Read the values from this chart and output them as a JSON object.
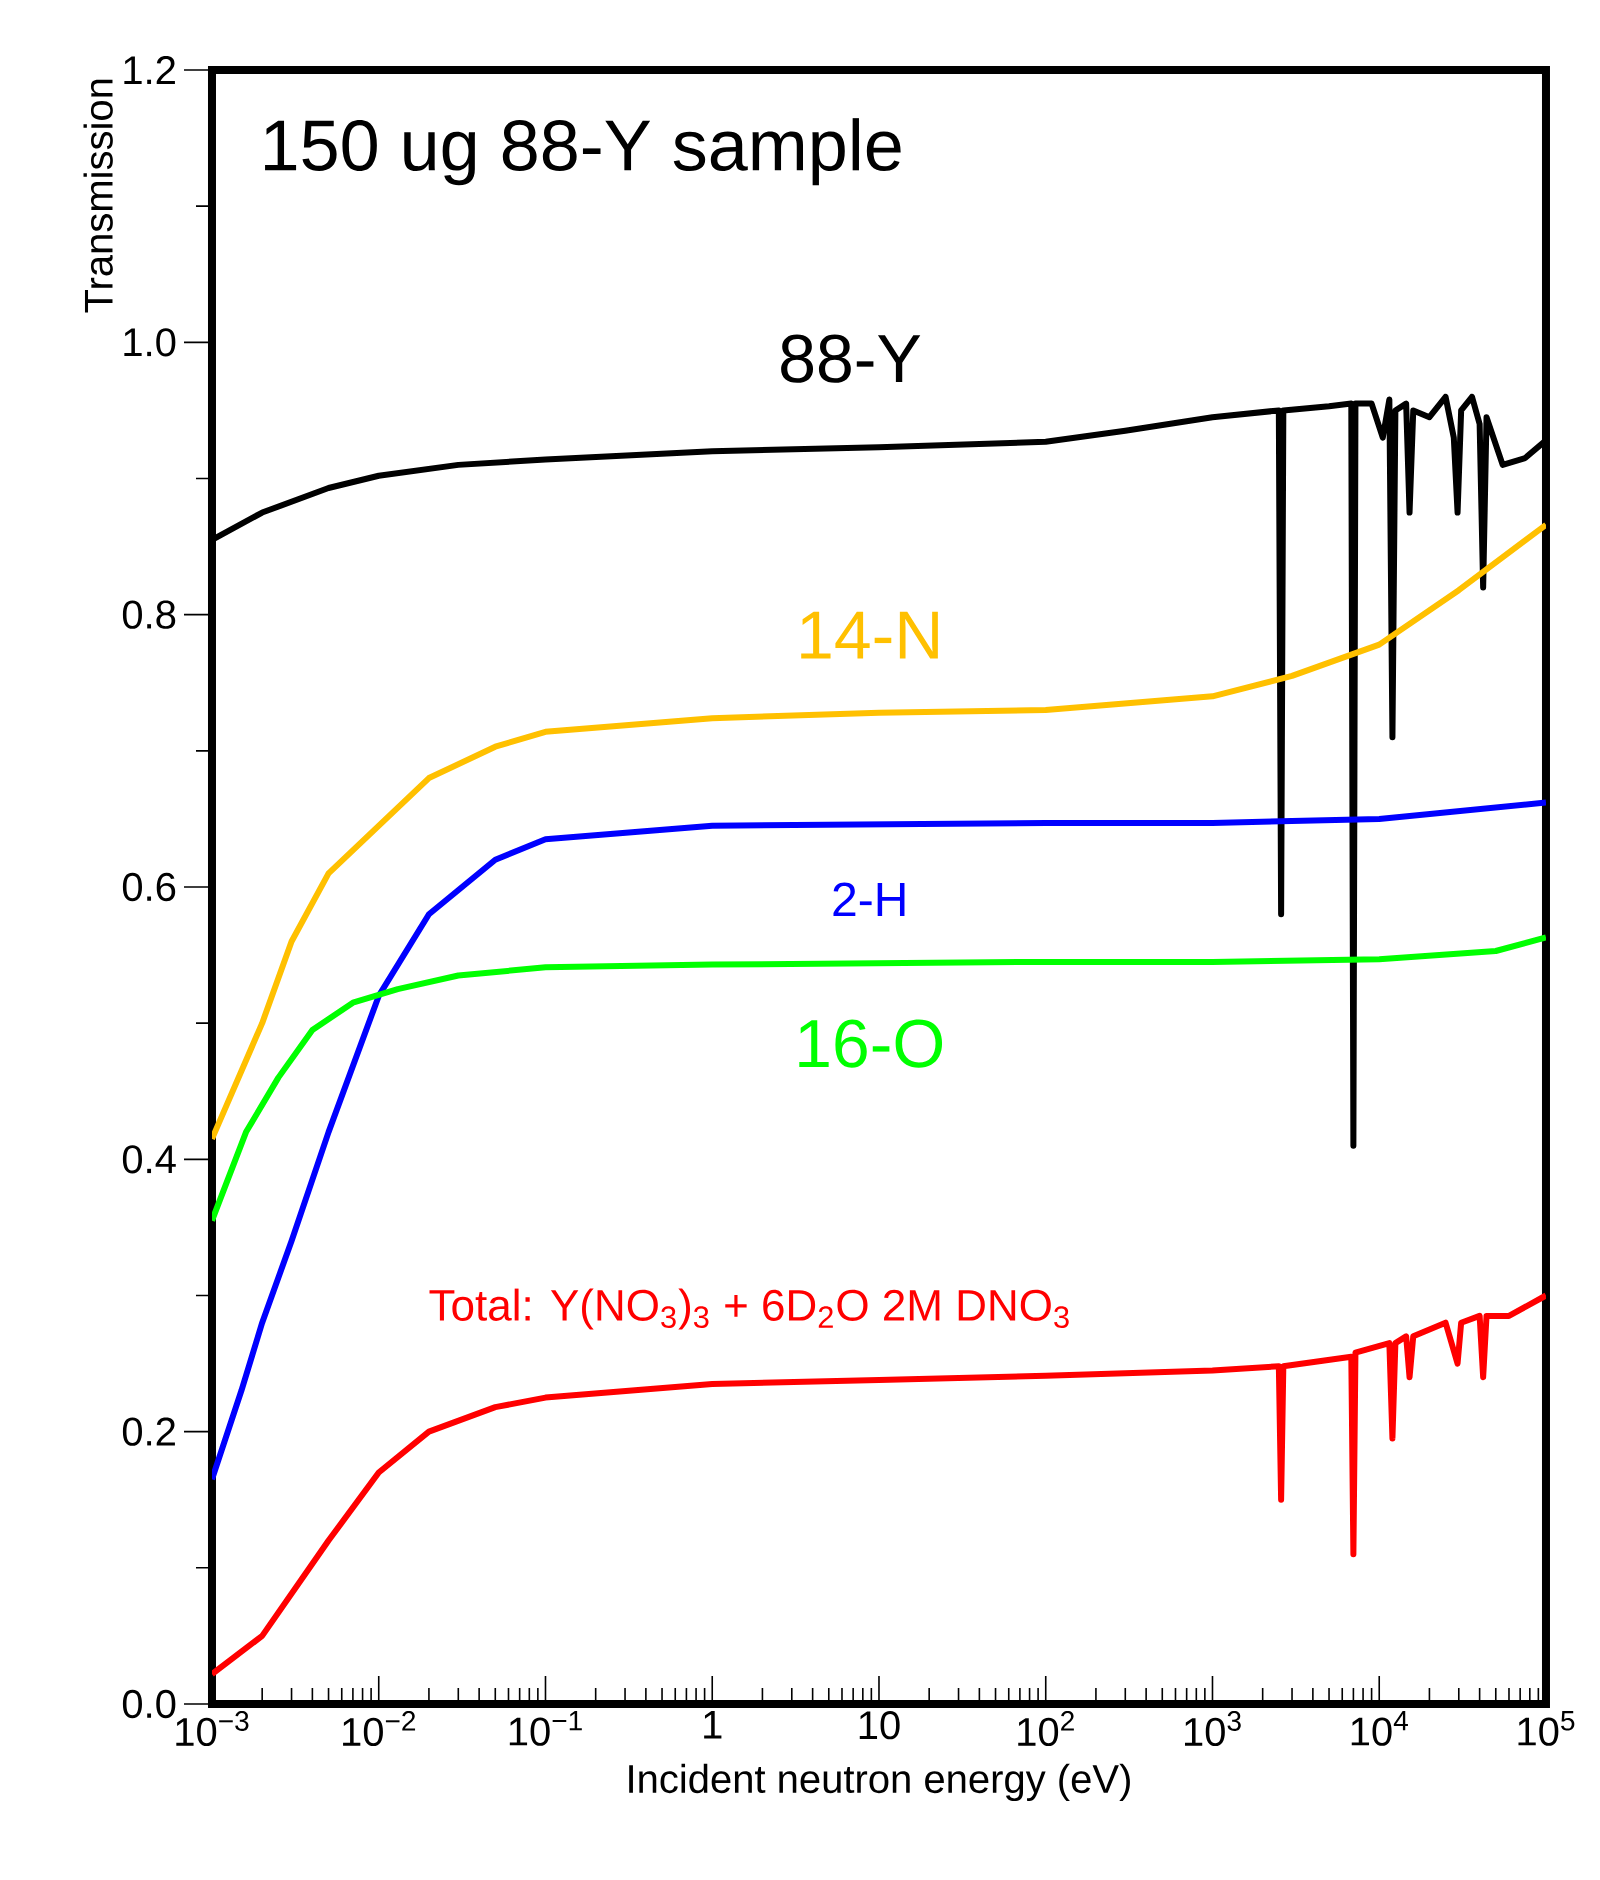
{
  "chart_data": {
    "type": "line",
    "title": "150 ug 88-Y sample",
    "xlabel": "Incident neutron energy (eV)",
    "ylabel": "Transmission",
    "log": "x",
    "xlim": [
      0.001,
      100000
    ],
    "ylim": [
      0,
      1.2
    ],
    "xticks": [
      {
        "value": 0.001,
        "label": "10$^{−3}$"
      },
      {
        "value": 0.01,
        "label": "10$^{−2}$"
      },
      {
        "value": 0.1,
        "label": "10$^{−1}$"
      },
      1,
      10,
      {
        "value": 100,
        "label": "10$^{2}$"
      },
      {
        "value": 1000,
        "label": "10$^{3}$"
      },
      {
        "value": 10000,
        "label": "10$^{4}$"
      },
      {
        "value": 100000,
        "label": "10$^{5}$"
      }
    ],
    "yticks": [
      {
        "value": 0,
        "label": "0.0"
      },
      0.2,
      0.4,
      0.6,
      0.8,
      {
        "value": 1,
        "label": "1.0"
      },
      1.2
    ],
    "marker": "none",
    "line_style": "solid",
    "series": [
      {
        "name": "88-Y",
        "color": "#000000",
        "x": [
          0.001,
          0.002,
          0.005,
          0.01,
          0.03,
          0.1,
          1,
          10,
          100,
          300,
          1000,
          2500,
          2580,
          2660,
          5000,
          6800,
          7000,
          7200,
          9000,
          10500,
          11500,
          12000,
          12500,
          14500,
          15200,
          16000,
          20000,
          25000,
          28000,
          29500,
          31000,
          36000,
          40000,
          42000,
          44000,
          55000,
          75000,
          100000
        ],
        "values": [
          0.855,
          0.875,
          0.893,
          0.902,
          0.91,
          0.914,
          0.92,
          0.923,
          0.927,
          0.935,
          0.945,
          0.95,
          0.58,
          0.95,
          0.953,
          0.955,
          0.41,
          0.955,
          0.955,
          0.93,
          0.958,
          0.71,
          0.95,
          0.955,
          0.875,
          0.95,
          0.945,
          0.96,
          0.93,
          0.875,
          0.95,
          0.96,
          0.94,
          0.82,
          0.945,
          0.91,
          0.915,
          0.928
        ]
      },
      {
        "name": "14-N",
        "color": "#ffc000",
        "x": [
          0.001,
          0.002,
          0.003,
          0.005,
          0.01,
          0.02,
          0.05,
          0.1,
          1,
          10,
          100,
          1000,
          3000,
          10000,
          30000,
          100000
        ],
        "values": [
          0.415,
          0.5,
          0.56,
          0.61,
          0.645,
          0.68,
          0.703,
          0.714,
          0.724,
          0.728,
          0.73,
          0.74,
          0.755,
          0.778,
          0.818,
          0.866
        ]
      },
      {
        "name": "2-H",
        "color": "#0000ff",
        "x": [
          0.001,
          0.0015,
          0.002,
          0.003,
          0.005,
          0.01,
          0.02,
          0.05,
          0.1,
          1,
          100,
          1000,
          10000,
          100000
        ],
        "values": [
          0.165,
          0.23,
          0.28,
          0.34,
          0.42,
          0.52,
          0.58,
          0.62,
          0.635,
          0.645,
          0.647,
          0.647,
          0.65,
          0.662
        ]
      },
      {
        "name": "16-O",
        "color": "#00ff00",
        "x": [
          0.001,
          0.0016,
          0.0025,
          0.004,
          0.007,
          0.013,
          0.03,
          0.1,
          1,
          100,
          1000,
          10000,
          50000,
          100000
        ],
        "values": [
          0.355,
          0.42,
          0.46,
          0.495,
          0.515,
          0.525,
          0.535,
          0.541,
          0.543,
          0.545,
          0.545,
          0.547,
          0.553,
          0.563
        ]
      },
      {
        "name": "Total: Y(NO$_{3}$)$_{3}$ + 6D$_{2}$O 2M DNO$_{3}$",
        "color": "#ff0000",
        "x": [
          0.001,
          0.002,
          0.005,
          0.01,
          0.02,
          0.05,
          0.1,
          1,
          10,
          100,
          1000,
          2500,
          2580,
          2660,
          6800,
          7000,
          7200,
          11500,
          12000,
          12500,
          14500,
          15200,
          16000,
          25000,
          29500,
          31000,
          40000,
          42000,
          44000,
          60000,
          100000
        ],
        "values": [
          0.022,
          0.05,
          0.12,
          0.17,
          0.2,
          0.218,
          0.225,
          0.235,
          0.238,
          0.241,
          0.245,
          0.248,
          0.15,
          0.248,
          0.255,
          0.11,
          0.258,
          0.265,
          0.195,
          0.265,
          0.27,
          0.24,
          0.27,
          0.28,
          0.25,
          0.28,
          0.285,
          0.24,
          0.285,
          0.285,
          0.3
        ]
      }
    ]
  }
}
